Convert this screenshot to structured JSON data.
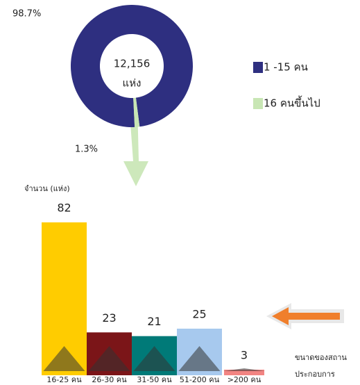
{
  "chart_data": [
    {
      "type": "donut",
      "categories": [
        "1 -15 คน",
        "16 คนขึ้นไป"
      ],
      "values": [
        98.7,
        1.3
      ],
      "value_labels": [
        "98.7%",
        "1.3%"
      ],
      "colors": [
        "#2e2f80",
        "#c8e6b4"
      ],
      "center_text": [
        "12,156",
        "แห่ง"
      ]
    },
    {
      "type": "bar",
      "y_label": "จำนวน (แห่ง)",
      "categories": [
        "16-25 คน",
        "26-30 คน",
        "31-50 คน",
        "51-200 คน",
        ">200 คน"
      ],
      "values": [
        82,
        23,
        21,
        25,
        3
      ],
      "colors": [
        "#ffcc00",
        "#7b1518",
        "#007a78",
        "#a7c9ee",
        "#f28482"
      ],
      "annotation": [
        "ขนาดของสถาน",
        "ประกอบการ"
      ]
    }
  ]
}
